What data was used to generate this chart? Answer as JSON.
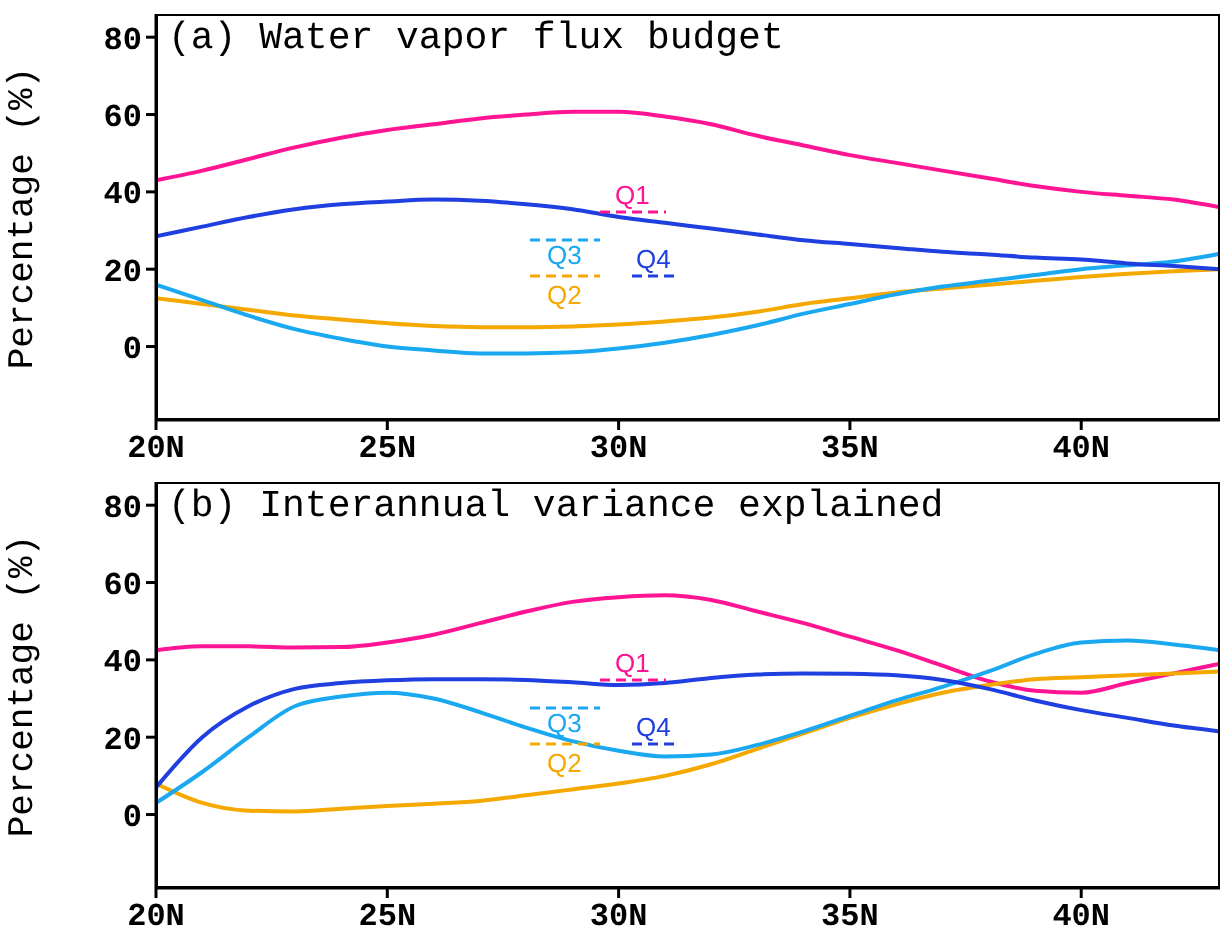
{
  "chart_data": [
    {
      "type": "line",
      "title": "(a) Water vapor flux budget",
      "ylabel": "Percentage (%)",
      "x": [
        20,
        21,
        22,
        23,
        24,
        25,
        26,
        27,
        28,
        29,
        30,
        31,
        32,
        33,
        34,
        35,
        36,
        37,
        38,
        39,
        40,
        41,
        42,
        43
      ],
      "series": [
        {
          "name": "Q1",
          "color": "#ff1493",
          "values": [
            43,
            45.5,
            48.5,
            51.5,
            54,
            56,
            57.5,
            59,
            60,
            60.7,
            60.7,
            59.5,
            57.5,
            54.5,
            52,
            49.5,
            47.5,
            45.5,
            43.5,
            41.5,
            40,
            39,
            38,
            36
          ]
        },
        {
          "name": "Q2",
          "color": "#f5a800",
          "values": [
            12.5,
            11,
            9.5,
            8,
            7,
            6,
            5.3,
            5,
            5,
            5.2,
            5.7,
            6.5,
            7.5,
            9,
            11,
            12.5,
            14,
            15,
            16,
            17,
            18,
            18.8,
            19.5,
            20
          ]
        },
        {
          "name": "Q3",
          "color": "#1aa8f0",
          "values": [
            16,
            12,
            8,
            4.5,
            2,
            0,
            -1,
            -1.8,
            -1.8,
            -1.5,
            -0.5,
            1,
            3,
            5.5,
            8.5,
            11,
            13.5,
            15.5,
            17,
            18.5,
            20,
            21,
            22,
            24
          ]
        },
        {
          "name": "Q4",
          "color": "#1f3fe0",
          "values": [
            28.5,
            31,
            33.5,
            35.5,
            36.8,
            37.5,
            38,
            37.7,
            36.8,
            35.5,
            33.5,
            32,
            30.5,
            29,
            27.5,
            26.5,
            25.5,
            24.5,
            23.8,
            23,
            22.5,
            21.5,
            20.8,
            20
          ]
        }
      ],
      "xlim": [
        20,
        43
      ],
      "xticks": [
        {
          "value": 20,
          "label": "20N"
        },
        {
          "value": 25,
          "label": "25N"
        },
        {
          "value": 30,
          "label": "30N"
        },
        {
          "value": 35,
          "label": "35N"
        },
        {
          "value": 40,
          "label": "40N"
        }
      ],
      "ylim": [
        -19,
        86
      ],
      "yticks": [
        0,
        20,
        40,
        60,
        80
      ],
      "legend": "center",
      "line_style": "solid"
    },
    {
      "type": "line",
      "title": "(b) Interannual variance explained",
      "ylabel": "Percentage (%)",
      "x": [
        20,
        21,
        22,
        23,
        24,
        25,
        26,
        27,
        28,
        29,
        30,
        31,
        32,
        33,
        34,
        35,
        36,
        37,
        38,
        39,
        40,
        41,
        42,
        43
      ],
      "series": [
        {
          "name": "Q1",
          "color": "#ff1493",
          "values": [
            42.5,
            43.5,
            43.5,
            43.2,
            43.3,
            44.5,
            46.5,
            49.5,
            52.5,
            55,
            56.2,
            56.7,
            55.5,
            52.5,
            49.5,
            46,
            42.5,
            38.5,
            34.5,
            32,
            31.5,
            34,
            36.5,
            39
          ]
        },
        {
          "name": "Q2",
          "color": "#f5a800",
          "values": [
            8,
            3,
            1,
            0.8,
            1.5,
            2.2,
            2.8,
            3.5,
            5,
            6.5,
            8,
            10,
            13,
            17,
            21,
            25,
            28.5,
            31.5,
            33.5,
            35,
            35.5,
            36,
            36.5,
            37
          ]
        },
        {
          "name": "Q3",
          "color": "#1aa8f0",
          "values": [
            3,
            11,
            20,
            28,
            30.5,
            31.5,
            30,
            26.5,
            22.5,
            19,
            16.5,
            15,
            15.5,
            18,
            21.5,
            25.5,
            29.5,
            33,
            37,
            41.5,
            44.5,
            45,
            44,
            42.5
          ]
        },
        {
          "name": "Q4",
          "color": "#1f3fe0",
          "values": [
            7,
            20,
            28,
            32.5,
            34,
            34.7,
            35,
            35,
            34.8,
            34.2,
            33.5,
            34,
            35.3,
            36.2,
            36.5,
            36.4,
            36,
            34.8,
            32.5,
            29.5,
            27,
            25,
            23,
            21.5
          ]
        }
      ],
      "xlim": [
        20,
        43
      ],
      "xticks": [
        {
          "value": 20,
          "label": "20N"
        },
        {
          "value": 25,
          "label": "25N"
        },
        {
          "value": 30,
          "label": "30N"
        },
        {
          "value": 35,
          "label": "35N"
        },
        {
          "value": 40,
          "label": "40N"
        }
      ],
      "ylim": [
        -19,
        86
      ],
      "yticks": [
        0,
        20,
        40,
        60,
        80
      ],
      "legend": "center",
      "line_style": "solid"
    }
  ]
}
